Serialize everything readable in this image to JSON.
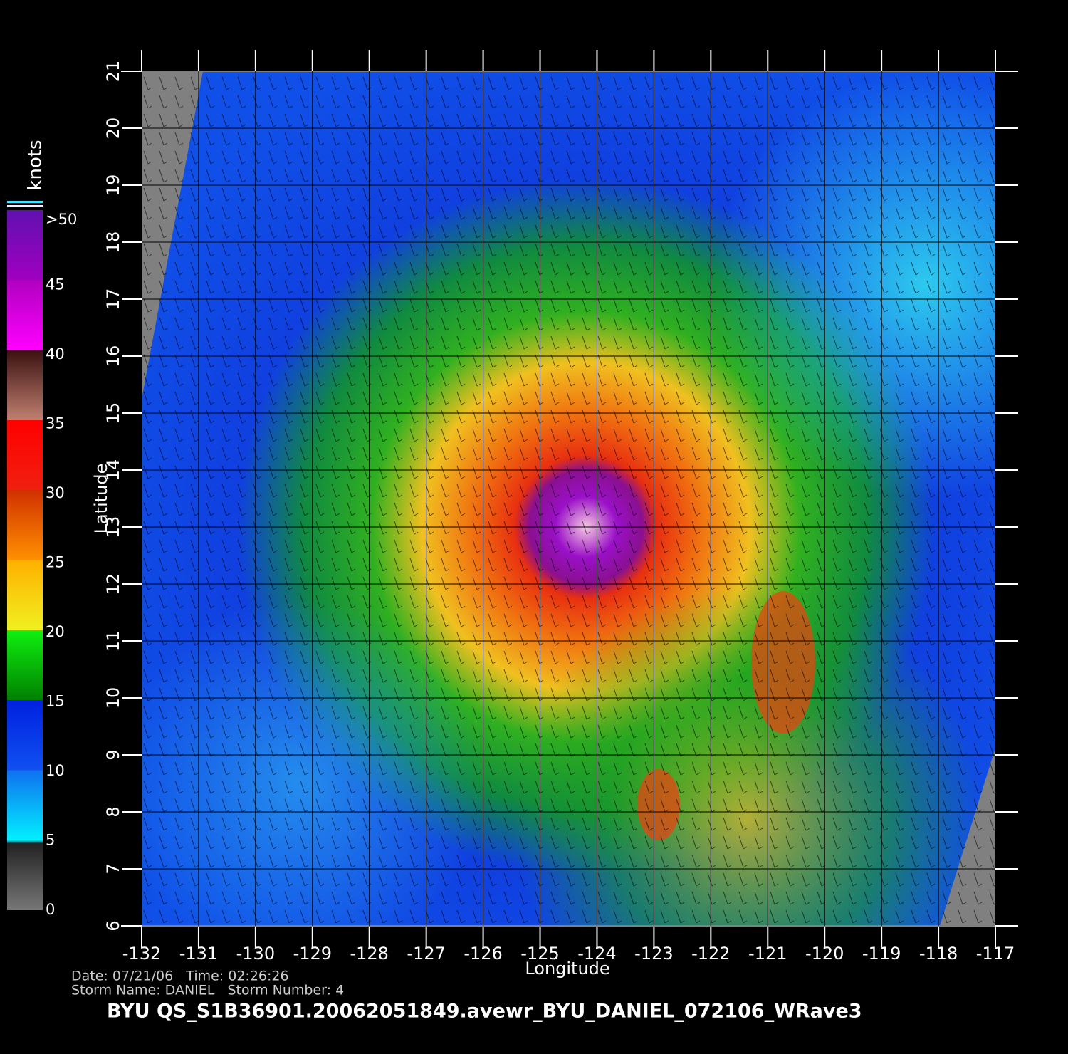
{
  "colorbar": {
    "units": "knots",
    "ticks": [
      0,
      5,
      10,
      15,
      20,
      25,
      30,
      35,
      40,
      45,
      {
        "value": 50,
        "label": ">50"
      }
    ]
  },
  "map": {
    "xlabel": "Longitude",
    "ylabel": "Latitude",
    "xlim": [
      -132,
      -117
    ],
    "ylim": [
      6,
      21
    ],
    "xticks": [
      -132,
      -131,
      -130,
      -129,
      -128,
      -127,
      -126,
      -125,
      -124,
      -123,
      -122,
      -121,
      -120,
      -119,
      -118,
      -117
    ],
    "yticks": [
      6,
      7,
      8,
      9,
      10,
      11,
      12,
      13,
      14,
      15,
      16,
      17,
      18,
      19,
      20,
      21
    ]
  },
  "footer": {
    "line1": "Date: 07/21/06   Time: 02:26:26",
    "line2": "Storm Name: DANIEL   Storm Number: 4",
    "title": "BYU  QS_S1B36901.20062051849.avewr_BYU_DANIEL_072106_WRave3"
  }
}
